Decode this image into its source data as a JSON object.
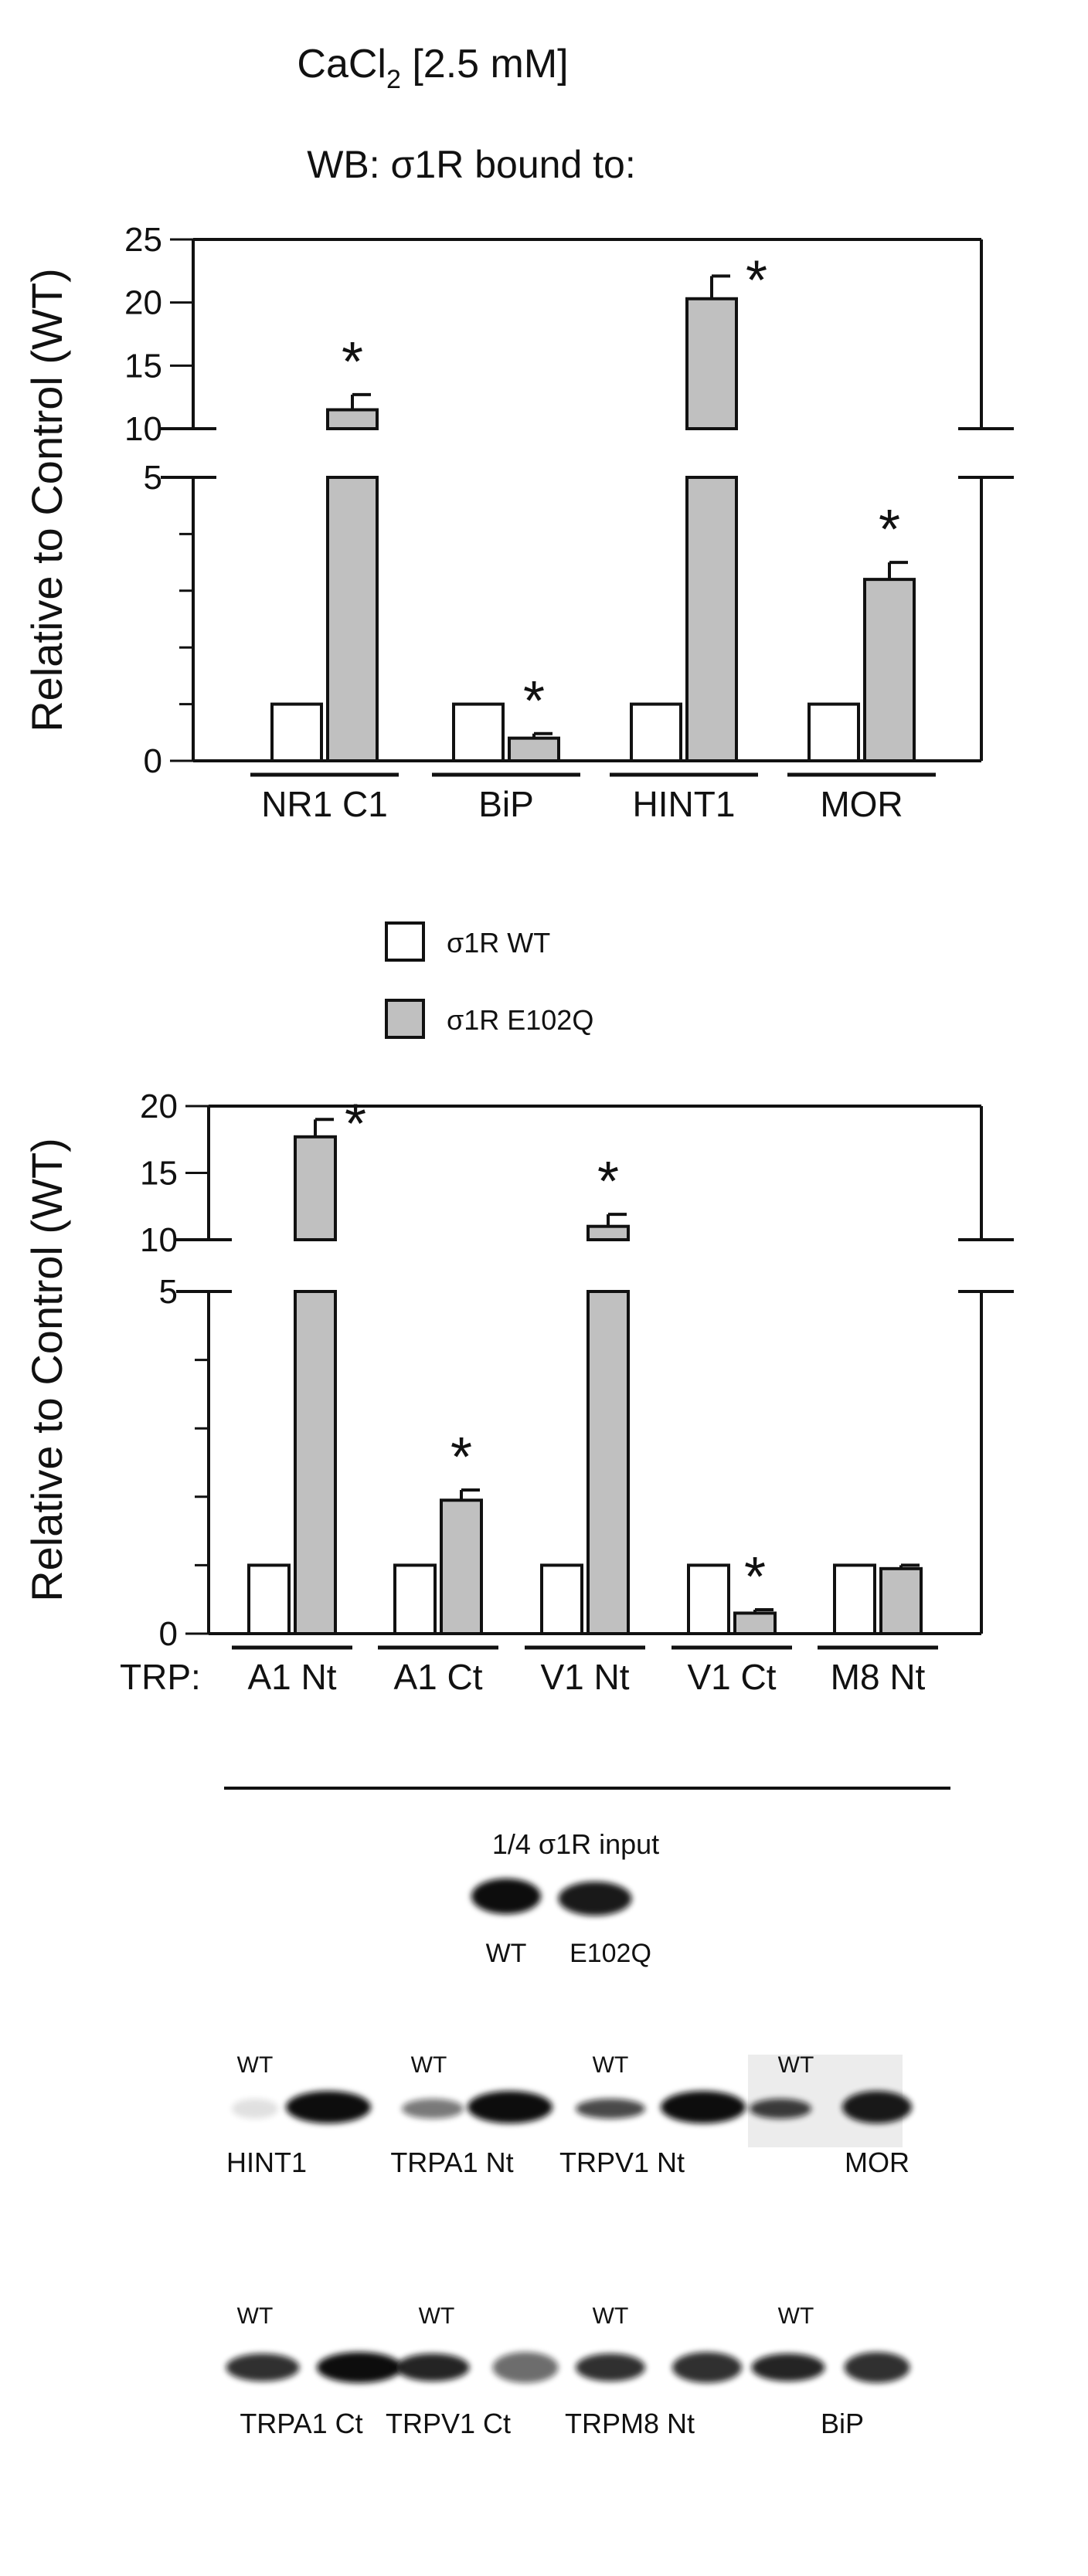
{
  "header": {
    "title_pre": "CaCl",
    "title_sub": "2",
    "title_post": " [2.5 mM]",
    "subtitle": "WB: σ1R bound to:"
  },
  "colors": {
    "wt": "#ffffff",
    "e102q": "#c0c0c0",
    "stroke": "#111111"
  },
  "legend": [
    {
      "label": "σ1R WT",
      "color": "#ffffff"
    },
    {
      "label": "σ1R E102Q",
      "color": "#c0c0c0"
    }
  ],
  "chart_data": [
    {
      "type": "bar",
      "ylabel": "Relative to Control (WT)",
      "y_axis": {
        "broken": true,
        "lower_ticks": [
          0,
          5
        ],
        "upper_ticks": [
          10,
          15,
          20,
          25
        ]
      },
      "categories": [
        "NR1 C1",
        "BiP",
        "HINT1",
        "MOR"
      ],
      "series": [
        {
          "name": "σ1R WT",
          "values": [
            1,
            1,
            1,
            1
          ]
        },
        {
          "name": "σ1R E102Q",
          "values": [
            11.5,
            0.4,
            20.3,
            3.2
          ],
          "errors": [
            1.2,
            0.08,
            1.8,
            0.3
          ]
        }
      ],
      "significance": [
        true,
        true,
        true,
        true
      ],
      "annotation_symbol": "*"
    },
    {
      "type": "bar",
      "ylabel": "Relative to Control (WT)",
      "y_axis": {
        "broken": true,
        "lower_ticks": [
          0,
          5
        ],
        "upper_ticks": [
          10,
          15,
          20
        ]
      },
      "category_prefix": "TRP:",
      "categories": [
        "A1 Nt",
        "A1 Ct",
        "V1 Nt",
        "V1 Ct",
        "M8 Nt"
      ],
      "series": [
        {
          "name": "σ1R WT",
          "values": [
            1,
            1,
            1,
            1,
            1
          ]
        },
        {
          "name": "σ1R E102Q",
          "values": [
            17.7,
            1.95,
            11.0,
            0.3,
            0.95
          ],
          "errors": [
            1.3,
            0.15,
            0.9,
            0.05,
            0.05
          ]
        }
      ],
      "significance": [
        true,
        true,
        true,
        true,
        false
      ],
      "annotation_symbol": "*"
    }
  ],
  "blots": {
    "input_label": "1/4 σ1R input",
    "input_lanes": [
      "WT",
      "E102Q"
    ],
    "lane_marker": "WT",
    "row1": [
      "HINT1",
      "TRPA1 Nt",
      "TRPV1 Nt",
      "MOR"
    ],
    "row2": [
      "TRPA1 Ct",
      "TRPV1 Ct",
      "TRPM8 Nt",
      "BiP"
    ]
  }
}
